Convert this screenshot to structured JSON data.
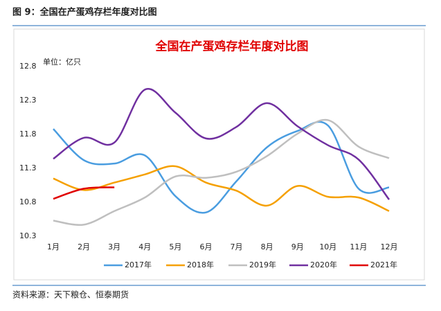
{
  "header": "图 9：全国在产蛋鸡存栏年度对比图",
  "source": "资料来源：天下粮仓、恒泰期货",
  "chart_data": {
    "type": "line",
    "title": "全国在产蛋鸡存栏年度对比图",
    "unit_label": "单位：亿只",
    "categories": [
      "1月",
      "2月",
      "3月",
      "4月",
      "5月",
      "6月",
      "7月",
      "8月",
      "9月",
      "10月",
      "11月",
      "12月"
    ],
    "ylim": [
      10.3,
      12.8
    ],
    "yticks": [
      10.3,
      10.8,
      11.3,
      11.8,
      12.3,
      12.8
    ],
    "grid": false,
    "legend": "bottom",
    "smooth": true,
    "series": [
      {
        "name": "2017年",
        "color": "#4a9de0",
        "values": [
          11.88,
          11.42,
          11.37,
          11.49,
          10.89,
          10.65,
          11.11,
          11.61,
          11.85,
          11.93,
          11.0,
          11.02
        ]
      },
      {
        "name": "2018年",
        "color": "#f5a000",
        "values": [
          11.15,
          10.98,
          11.09,
          11.21,
          11.33,
          11.09,
          10.97,
          10.75,
          11.04,
          10.88,
          10.87,
          10.67
        ]
      },
      {
        "name": "2019年",
        "color": "#bfbfbf",
        "values": [
          10.53,
          10.47,
          10.67,
          10.87,
          11.18,
          11.16,
          11.25,
          11.48,
          11.81,
          12.01,
          11.62,
          11.45
        ]
      },
      {
        "name": "2020年",
        "color": "#7030a0",
        "values": [
          11.44,
          11.75,
          11.68,
          12.46,
          12.12,
          11.74,
          11.91,
          12.26,
          11.92,
          11.64,
          11.43,
          10.84
        ]
      },
      {
        "name": "2021年",
        "color": "#e00000",
        "values": [
          10.85,
          11.0,
          11.02,
          null,
          null,
          null,
          null,
          null,
          null,
          null,
          null,
          null
        ]
      }
    ]
  }
}
